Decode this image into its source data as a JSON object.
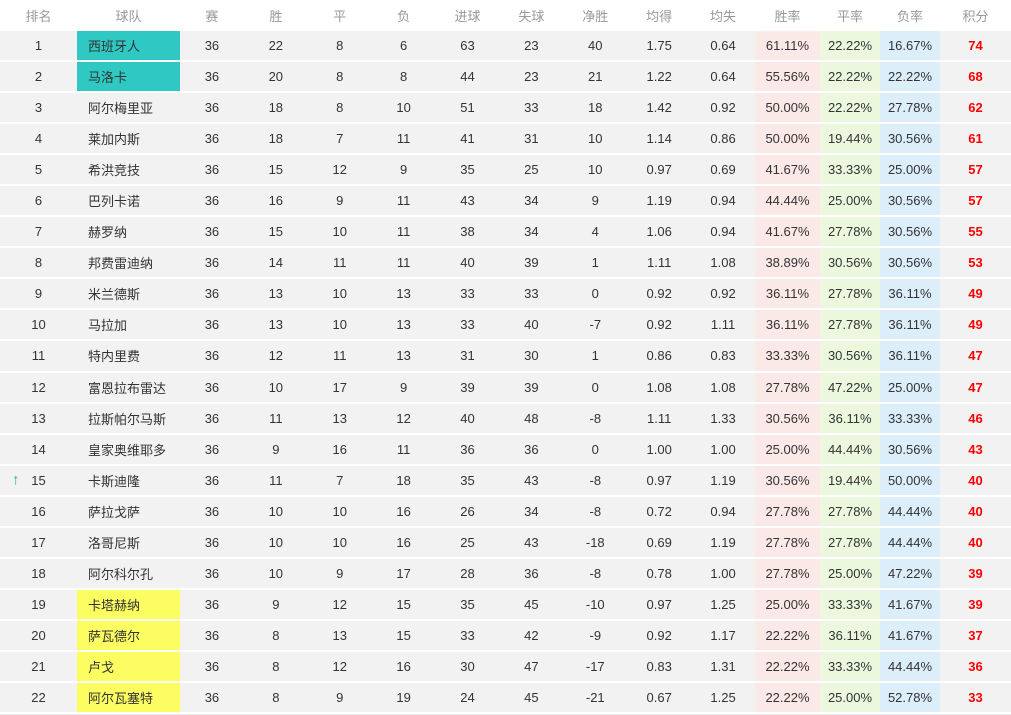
{
  "colors": {
    "teal_highlight": "#2fc8c3",
    "yellow_highlight": "#fbfd60",
    "win_rate_bg": "#fbe9e8",
    "draw_rate_bg": "#ebf8de",
    "loss_rate_bg": "#dceefa",
    "points_red": "#ff0000",
    "arrow_green": "#28b287",
    "row_bg": "#f2f2f2",
    "header_text": "#999999",
    "body_text": "#333333"
  },
  "icons": {
    "up_arrow": "↑"
  },
  "table": {
    "columns": [
      "排名",
      "球队",
      "赛",
      "胜",
      "平",
      "负",
      "进球",
      "失球",
      "净胜",
      "均得",
      "均失",
      "胜率",
      "平率",
      "负率",
      "积分"
    ],
    "rows": [
      {
        "rank": "1",
        "team": "西班牙人",
        "highlight": "teal",
        "arrow": "",
        "played": "36",
        "win": "22",
        "draw": "8",
        "loss": "6",
        "goals_for": "63",
        "goals_against": "23",
        "goal_diff": "40",
        "avg_for": "1.75",
        "avg_against": "0.64",
        "win_rate": "61.11%",
        "draw_rate": "22.22%",
        "loss_rate": "16.67%",
        "points": "74"
      },
      {
        "rank": "2",
        "team": "马洛卡",
        "highlight": "teal",
        "arrow": "",
        "played": "36",
        "win": "20",
        "draw": "8",
        "loss": "8",
        "goals_for": "44",
        "goals_against": "23",
        "goal_diff": "21",
        "avg_for": "1.22",
        "avg_against": "0.64",
        "win_rate": "55.56%",
        "draw_rate": "22.22%",
        "loss_rate": "22.22%",
        "points": "68"
      },
      {
        "rank": "3",
        "team": "阿尔梅里亚",
        "highlight": "",
        "arrow": "",
        "played": "36",
        "win": "18",
        "draw": "8",
        "loss": "10",
        "goals_for": "51",
        "goals_against": "33",
        "goal_diff": "18",
        "avg_for": "1.42",
        "avg_against": "0.92",
        "win_rate": "50.00%",
        "draw_rate": "22.22%",
        "loss_rate": "27.78%",
        "points": "62"
      },
      {
        "rank": "4",
        "team": "莱加内斯",
        "highlight": "",
        "arrow": "",
        "played": "36",
        "win": "18",
        "draw": "7",
        "loss": "11",
        "goals_for": "41",
        "goals_against": "31",
        "goal_diff": "10",
        "avg_for": "1.14",
        "avg_against": "0.86",
        "win_rate": "50.00%",
        "draw_rate": "19.44%",
        "loss_rate": "30.56%",
        "points": "61"
      },
      {
        "rank": "5",
        "team": "希洪竞技",
        "highlight": "",
        "arrow": "",
        "played": "36",
        "win": "15",
        "draw": "12",
        "loss": "9",
        "goals_for": "35",
        "goals_against": "25",
        "goal_diff": "10",
        "avg_for": "0.97",
        "avg_against": "0.69",
        "win_rate": "41.67%",
        "draw_rate": "33.33%",
        "loss_rate": "25.00%",
        "points": "57"
      },
      {
        "rank": "6",
        "team": "巴列卡诺",
        "highlight": "",
        "arrow": "",
        "played": "36",
        "win": "16",
        "draw": "9",
        "loss": "11",
        "goals_for": "43",
        "goals_against": "34",
        "goal_diff": "9",
        "avg_for": "1.19",
        "avg_against": "0.94",
        "win_rate": "44.44%",
        "draw_rate": "25.00%",
        "loss_rate": "30.56%",
        "points": "57"
      },
      {
        "rank": "7",
        "team": "赫罗纳",
        "highlight": "",
        "arrow": "",
        "played": "36",
        "win": "15",
        "draw": "10",
        "loss": "11",
        "goals_for": "38",
        "goals_against": "34",
        "goal_diff": "4",
        "avg_for": "1.06",
        "avg_against": "0.94",
        "win_rate": "41.67%",
        "draw_rate": "27.78%",
        "loss_rate": "30.56%",
        "points": "55"
      },
      {
        "rank": "8",
        "team": "邦费雷迪纳",
        "highlight": "",
        "arrow": "",
        "played": "36",
        "win": "14",
        "draw": "11",
        "loss": "11",
        "goals_for": "40",
        "goals_against": "39",
        "goal_diff": "1",
        "avg_for": "1.11",
        "avg_against": "1.08",
        "win_rate": "38.89%",
        "draw_rate": "30.56%",
        "loss_rate": "30.56%",
        "points": "53"
      },
      {
        "rank": "9",
        "team": "米兰德斯",
        "highlight": "",
        "arrow": "",
        "played": "36",
        "win": "13",
        "draw": "10",
        "loss": "13",
        "goals_for": "33",
        "goals_against": "33",
        "goal_diff": "0",
        "avg_for": "0.92",
        "avg_against": "0.92",
        "win_rate": "36.11%",
        "draw_rate": "27.78%",
        "loss_rate": "36.11%",
        "points": "49"
      },
      {
        "rank": "10",
        "team": "马拉加",
        "highlight": "",
        "arrow": "",
        "played": "36",
        "win": "13",
        "draw": "10",
        "loss": "13",
        "goals_for": "33",
        "goals_against": "40",
        "goal_diff": "-7",
        "avg_for": "0.92",
        "avg_against": "1.11",
        "win_rate": "36.11%",
        "draw_rate": "27.78%",
        "loss_rate": "36.11%",
        "points": "49"
      },
      {
        "rank": "11",
        "team": "特内里费",
        "highlight": "",
        "arrow": "",
        "played": "36",
        "win": "12",
        "draw": "11",
        "loss": "13",
        "goals_for": "31",
        "goals_against": "30",
        "goal_diff": "1",
        "avg_for": "0.86",
        "avg_against": "0.83",
        "win_rate": "33.33%",
        "draw_rate": "30.56%",
        "loss_rate": "36.11%",
        "points": "47"
      },
      {
        "rank": "12",
        "team": "富恩拉布雷达",
        "highlight": "",
        "arrow": "",
        "played": "36",
        "win": "10",
        "draw": "17",
        "loss": "9",
        "goals_for": "39",
        "goals_against": "39",
        "goal_diff": "0",
        "avg_for": "1.08",
        "avg_against": "1.08",
        "win_rate": "27.78%",
        "draw_rate": "47.22%",
        "loss_rate": "25.00%",
        "points": "47"
      },
      {
        "rank": "13",
        "team": "拉斯帕尔马斯",
        "highlight": "",
        "arrow": "",
        "played": "36",
        "win": "11",
        "draw": "13",
        "loss": "12",
        "goals_for": "40",
        "goals_against": "48",
        "goal_diff": "-8",
        "avg_for": "1.11",
        "avg_against": "1.33",
        "win_rate": "30.56%",
        "draw_rate": "36.11%",
        "loss_rate": "33.33%",
        "points": "46"
      },
      {
        "rank": "14",
        "team": "皇家奥维耶多",
        "highlight": "",
        "arrow": "",
        "played": "36",
        "win": "9",
        "draw": "16",
        "loss": "11",
        "goals_for": "36",
        "goals_against": "36",
        "goal_diff": "0",
        "avg_for": "1.00",
        "avg_against": "1.00",
        "win_rate": "25.00%",
        "draw_rate": "44.44%",
        "loss_rate": "30.56%",
        "points": "43"
      },
      {
        "rank": "15",
        "team": "卡斯迪隆",
        "highlight": "",
        "arrow": "up",
        "played": "36",
        "win": "11",
        "draw": "7",
        "loss": "18",
        "goals_for": "35",
        "goals_against": "43",
        "goal_diff": "-8",
        "avg_for": "0.97",
        "avg_against": "1.19",
        "win_rate": "30.56%",
        "draw_rate": "19.44%",
        "loss_rate": "50.00%",
        "points": "40"
      },
      {
        "rank": "16",
        "team": "萨拉戈萨",
        "highlight": "",
        "arrow": "",
        "played": "36",
        "win": "10",
        "draw": "10",
        "loss": "16",
        "goals_for": "26",
        "goals_against": "34",
        "goal_diff": "-8",
        "avg_for": "0.72",
        "avg_against": "0.94",
        "win_rate": "27.78%",
        "draw_rate": "27.78%",
        "loss_rate": "44.44%",
        "points": "40"
      },
      {
        "rank": "17",
        "team": "洛哥尼斯",
        "highlight": "",
        "arrow": "",
        "played": "36",
        "win": "10",
        "draw": "10",
        "loss": "16",
        "goals_for": "25",
        "goals_against": "43",
        "goal_diff": "-18",
        "avg_for": "0.69",
        "avg_against": "1.19",
        "win_rate": "27.78%",
        "draw_rate": "27.78%",
        "loss_rate": "44.44%",
        "points": "40"
      },
      {
        "rank": "18",
        "team": "阿尔科尔孔",
        "highlight": "",
        "arrow": "",
        "played": "36",
        "win": "10",
        "draw": "9",
        "loss": "17",
        "goals_for": "28",
        "goals_against": "36",
        "goal_diff": "-8",
        "avg_for": "0.78",
        "avg_against": "1.00",
        "win_rate": "27.78%",
        "draw_rate": "25.00%",
        "loss_rate": "47.22%",
        "points": "39"
      },
      {
        "rank": "19",
        "team": "卡塔赫纳",
        "highlight": "yellow",
        "arrow": "",
        "played": "36",
        "win": "9",
        "draw": "12",
        "loss": "15",
        "goals_for": "35",
        "goals_against": "45",
        "goal_diff": "-10",
        "avg_for": "0.97",
        "avg_against": "1.25",
        "win_rate": "25.00%",
        "draw_rate": "33.33%",
        "loss_rate": "41.67%",
        "points": "39"
      },
      {
        "rank": "20",
        "team": "萨瓦德尔",
        "highlight": "yellow",
        "arrow": "",
        "played": "36",
        "win": "8",
        "draw": "13",
        "loss": "15",
        "goals_for": "33",
        "goals_against": "42",
        "goal_diff": "-9",
        "avg_for": "0.92",
        "avg_against": "1.17",
        "win_rate": "22.22%",
        "draw_rate": "36.11%",
        "loss_rate": "41.67%",
        "points": "37"
      },
      {
        "rank": "21",
        "team": "卢戈",
        "highlight": "yellow",
        "arrow": "",
        "played": "36",
        "win": "8",
        "draw": "12",
        "loss": "16",
        "goals_for": "30",
        "goals_against": "47",
        "goal_diff": "-17",
        "avg_for": "0.83",
        "avg_against": "1.31",
        "win_rate": "22.22%",
        "draw_rate": "33.33%",
        "loss_rate": "44.44%",
        "points": "36"
      },
      {
        "rank": "22",
        "team": "阿尔瓦塞特",
        "highlight": "yellow",
        "arrow": "",
        "played": "36",
        "win": "8",
        "draw": "9",
        "loss": "19",
        "goals_for": "24",
        "goals_against": "45",
        "goal_diff": "-21",
        "avg_for": "0.67",
        "avg_against": "1.25",
        "win_rate": "22.22%",
        "draw_rate": "25.00%",
        "loss_rate": "52.78%",
        "points": "33"
      }
    ]
  }
}
